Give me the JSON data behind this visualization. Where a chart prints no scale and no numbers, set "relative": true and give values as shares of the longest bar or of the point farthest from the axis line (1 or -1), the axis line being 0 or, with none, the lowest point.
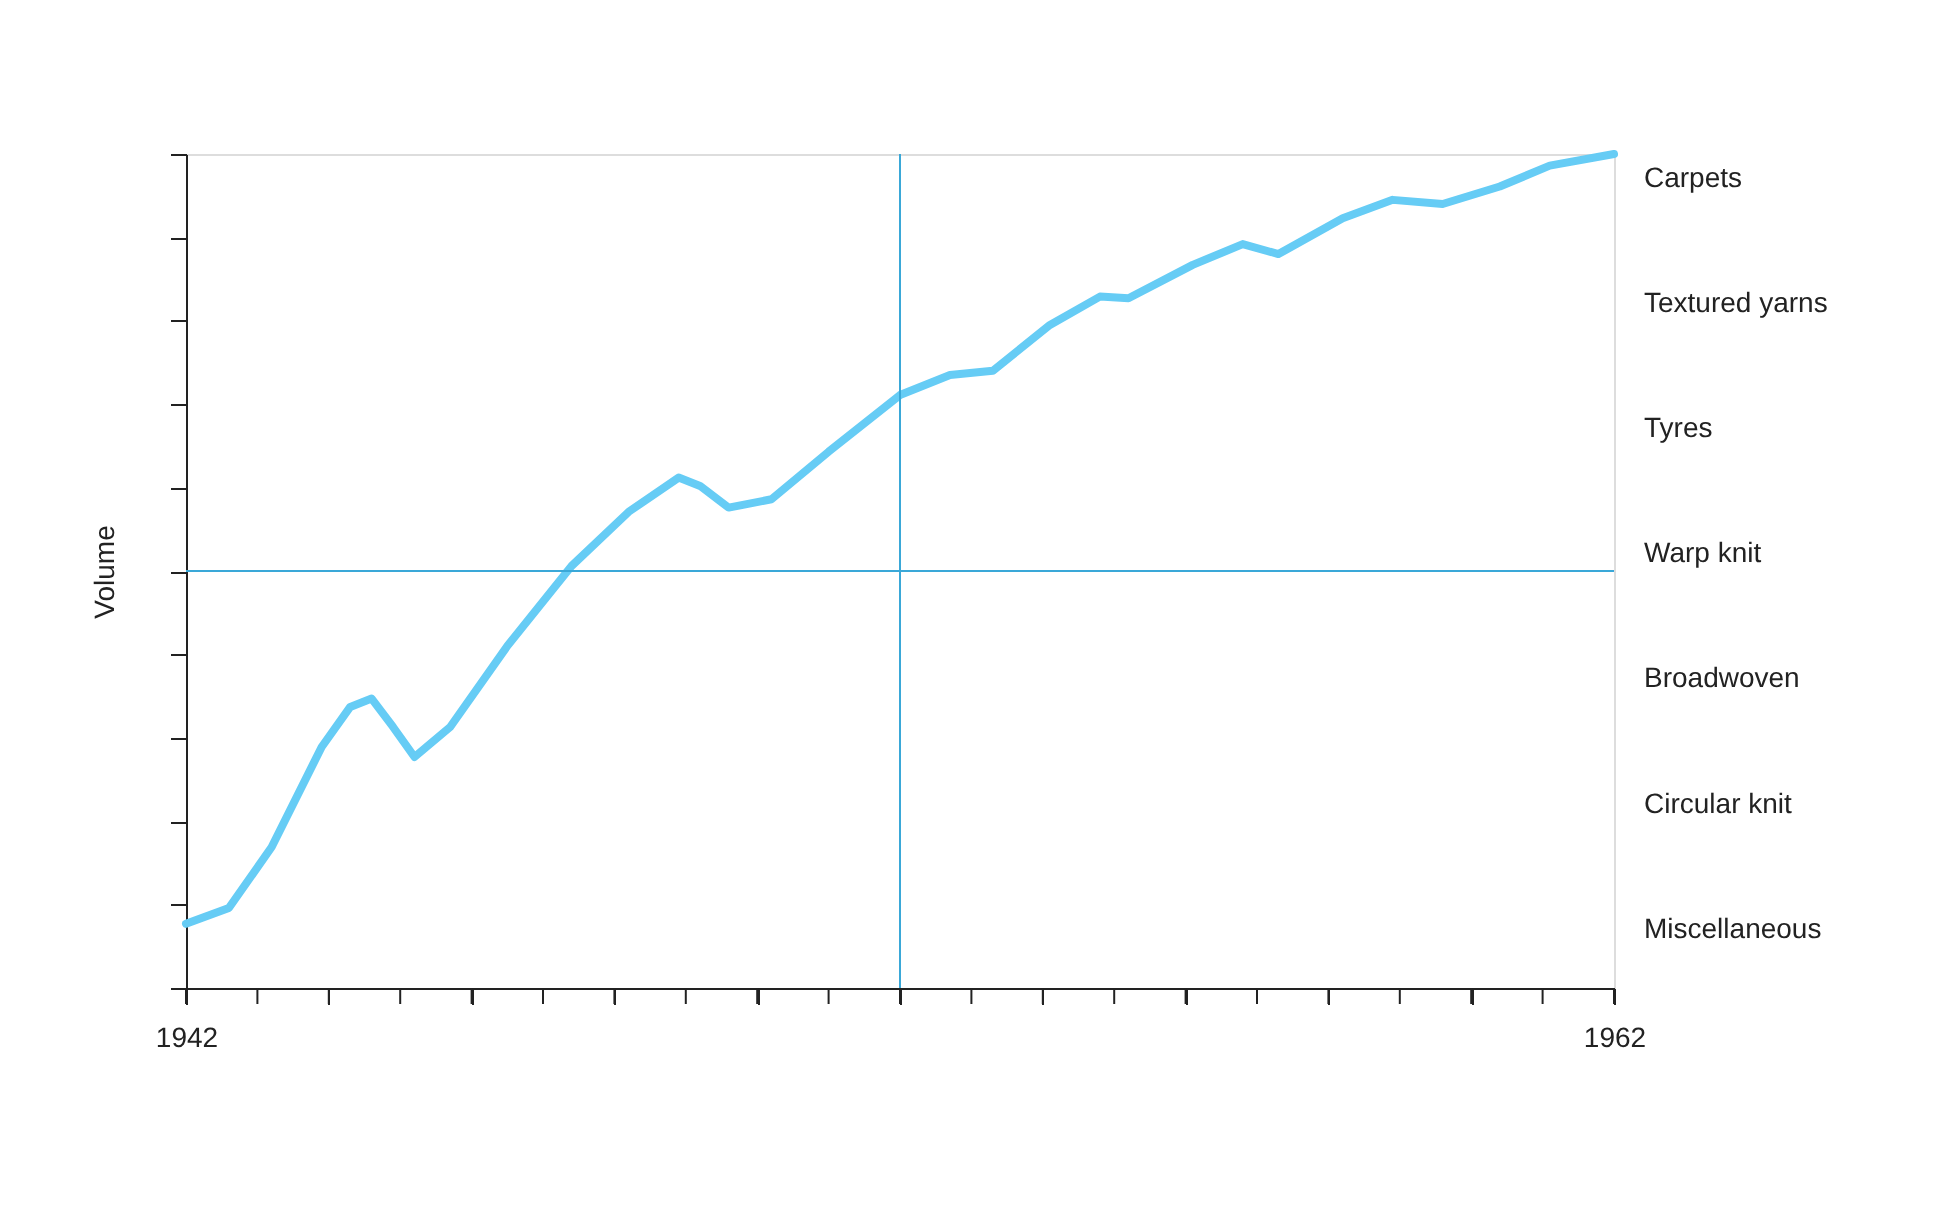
{
  "chart_data": {
    "type": "line",
    "ylabel": "Volume",
    "relative": true,
    "grid": false,
    "marker": "none",
    "line_style": "solid",
    "xlim": [
      1942,
      1962
    ],
    "xticks": [
      1942,
      {
        "value": 1943,
        "label": null
      },
      {
        "value": 1944,
        "label": null
      },
      {
        "value": 1945,
        "label": null
      },
      {
        "value": 1946,
        "label": null
      },
      {
        "value": 1947,
        "label": null
      },
      {
        "value": 1948,
        "label": null
      },
      {
        "value": 1949,
        "label": null
      },
      {
        "value": 1950,
        "label": null
      },
      {
        "value": 1951,
        "label": null
      },
      {
        "value": 1952,
        "label": null
      },
      {
        "value": 1953,
        "label": null
      },
      {
        "value": 1954,
        "label": null
      },
      {
        "value": 1955,
        "label": null
      },
      {
        "value": 1956,
        "label": null
      },
      {
        "value": 1957,
        "label": null
      },
      {
        "value": 1958,
        "label": null
      },
      {
        "value": 1959,
        "label": null
      },
      {
        "value": 1960,
        "label": null
      },
      {
        "value": 1961,
        "label": null
      },
      1962
    ],
    "x": [
      1942.0,
      1942.6,
      1943.2,
      1943.9,
      1944.3,
      1944.6,
      1944.9,
      1945.2,
      1945.7,
      1946.5,
      1947.4,
      1948.2,
      1948.9,
      1949.2,
      1949.6,
      1950.2,
      1951.0,
      1952.0,
      1952.7,
      1953.3,
      1954.1,
      1954.8,
      1955.2,
      1956.1,
      1956.8,
      1957.3,
      1958.2,
      1958.9,
      1959.6,
      1960.4,
      1961.1,
      1962.0
    ],
    "series": [
      {
        "color": "#66ccf5",
        "values": [
          0.077,
          0.096,
          0.169,
          0.289,
          0.337,
          0.347,
          0.313,
          0.277,
          0.313,
          0.41,
          0.506,
          0.571,
          0.612,
          0.602,
          0.576,
          0.586,
          0.643,
          0.711,
          0.735,
          0.74,
          0.795,
          0.829,
          0.827,
          0.867,
          0.892,
          0.88,
          0.923,
          0.945,
          0.94,
          0.961,
          0.986,
          1.0
        ]
      }
    ],
    "ref_lines": [
      {
        "axis": "x",
        "value": 1952,
        "color": "#3aa8d8"
      },
      {
        "axis": "y",
        "value": 0.5,
        "color": "#3aa8d8"
      }
    ],
    "annotations": [
      "Carpets",
      "Textured yarns",
      "Tyres",
      "Warp knit",
      "Broadwoven",
      "Circular knit",
      "Miscellaneous"
    ]
  }
}
